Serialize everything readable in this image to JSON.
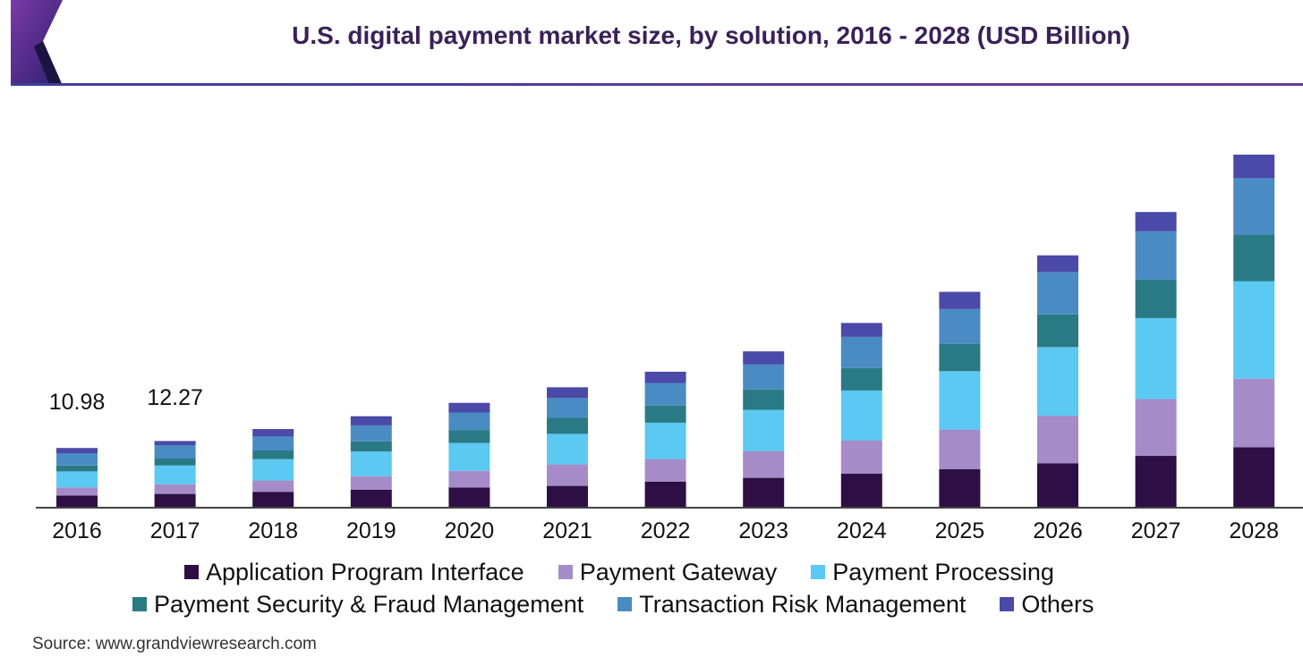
{
  "title": "U.S. digital payment market size, by solution, 2016 - 2028 (USD Billion)",
  "source": "Source: www.grandviewresearch.com",
  "colors": {
    "title": "#3a2157",
    "rule": "#3d3d9e"
  },
  "chart_data": {
    "type": "bar",
    "stacked": true,
    "title": "U.S. digital payment market size, by solution, 2016 - 2028 (USD Billion)",
    "xlabel": "",
    "ylabel": "",
    "grid": false,
    "legend_position": "bottom",
    "categories": [
      "2016",
      "2017",
      "2018",
      "2019",
      "2020",
      "2021",
      "2022",
      "2023",
      "2024",
      "2025",
      "2026",
      "2027",
      "2028"
    ],
    "series": [
      {
        "name": "Application Program Interface",
        "color": "#2e0f45",
        "values": [
          2.1,
          2.4,
          2.8,
          3.2,
          3.6,
          3.9,
          4.7,
          5.4,
          6.2,
          7.0,
          8.1,
          9.5,
          11.1
        ]
      },
      {
        "name": "Payment Gateway",
        "color": "#a58cc8",
        "values": [
          1.5,
          1.8,
          2.1,
          2.5,
          3.1,
          4.0,
          4.2,
          5.0,
          6.2,
          7.4,
          8.9,
          10.6,
          12.8
        ]
      },
      {
        "name": "Payment Processing",
        "color": "#5bc9f1",
        "values": [
          3.0,
          3.5,
          4.0,
          4.6,
          5.2,
          5.7,
          6.8,
          7.7,
          9.3,
          10.9,
          12.8,
          15.1,
          18.2
        ]
      },
      {
        "name": "Payment Security & Fraud Management",
        "color": "#2a7a85",
        "values": [
          1.1,
          1.3,
          1.6,
          1.9,
          2.4,
          3.0,
          3.2,
          3.8,
          4.2,
          5.1,
          6.1,
          7.2,
          8.7
        ]
      },
      {
        "name": "Transaction Risk Management",
        "color": "#4b8bc4",
        "values": [
          2.3,
          2.5,
          2.6,
          3.0,
          3.3,
          3.7,
          4.2,
          4.7,
          5.8,
          6.5,
          7.9,
          9.0,
          10.5
        ]
      },
      {
        "name": "Others",
        "color": "#4b4aa8",
        "values": [
          0.98,
          0.77,
          1.4,
          1.7,
          1.8,
          2.0,
          2.1,
          2.4,
          2.6,
          3.2,
          3.1,
          3.6,
          4.4
        ]
      }
    ],
    "data_labels": [
      {
        "category": "2016",
        "text": "10.98"
      },
      {
        "category": "2017",
        "text": "12.27"
      }
    ],
    "ylim": [
      0,
      66.7
    ]
  }
}
